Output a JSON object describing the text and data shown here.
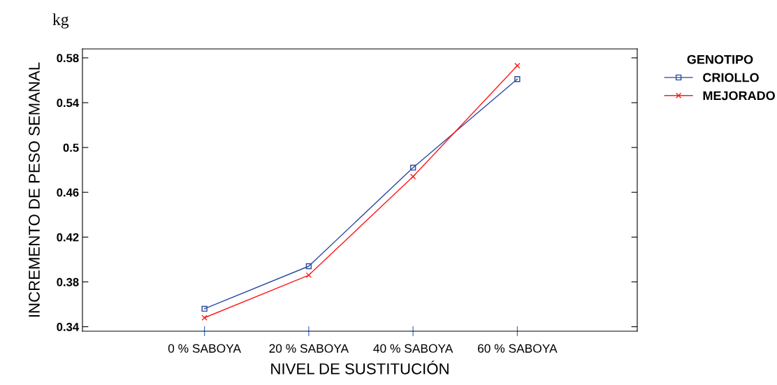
{
  "chart_data": {
    "type": "line",
    "xlabel": "NIVEL DE SUSTITUCIÓN",
    "ylabel": "INCREMENTO DE PESO SEMANAL",
    "annotations": [
      "kg"
    ],
    "categories": [
      "0 % SABOYA",
      "20 % SABOYA",
      "40 % SABOYA",
      "60 % SABOYA"
    ],
    "series": [
      {
        "name": "CRIOLLO",
        "color": "#2b4a9e",
        "marker": "square",
        "values": [
          0.356,
          0.394,
          0.482,
          0.561
        ]
      },
      {
        "name": "MEJORADO",
        "color": "#ff1a1a",
        "marker": "cross",
        "values": [
          0.348,
          0.386,
          0.474,
          0.573
        ]
      }
    ],
    "legend_title": "GENOTIPO",
    "legend": "top right",
    "grid": false,
    "ylim": [
      0.336,
      0.588
    ],
    "yticks": [
      0.34,
      0.38,
      0.42,
      0.46,
      0.5,
      0.54,
      0.58
    ]
  }
}
